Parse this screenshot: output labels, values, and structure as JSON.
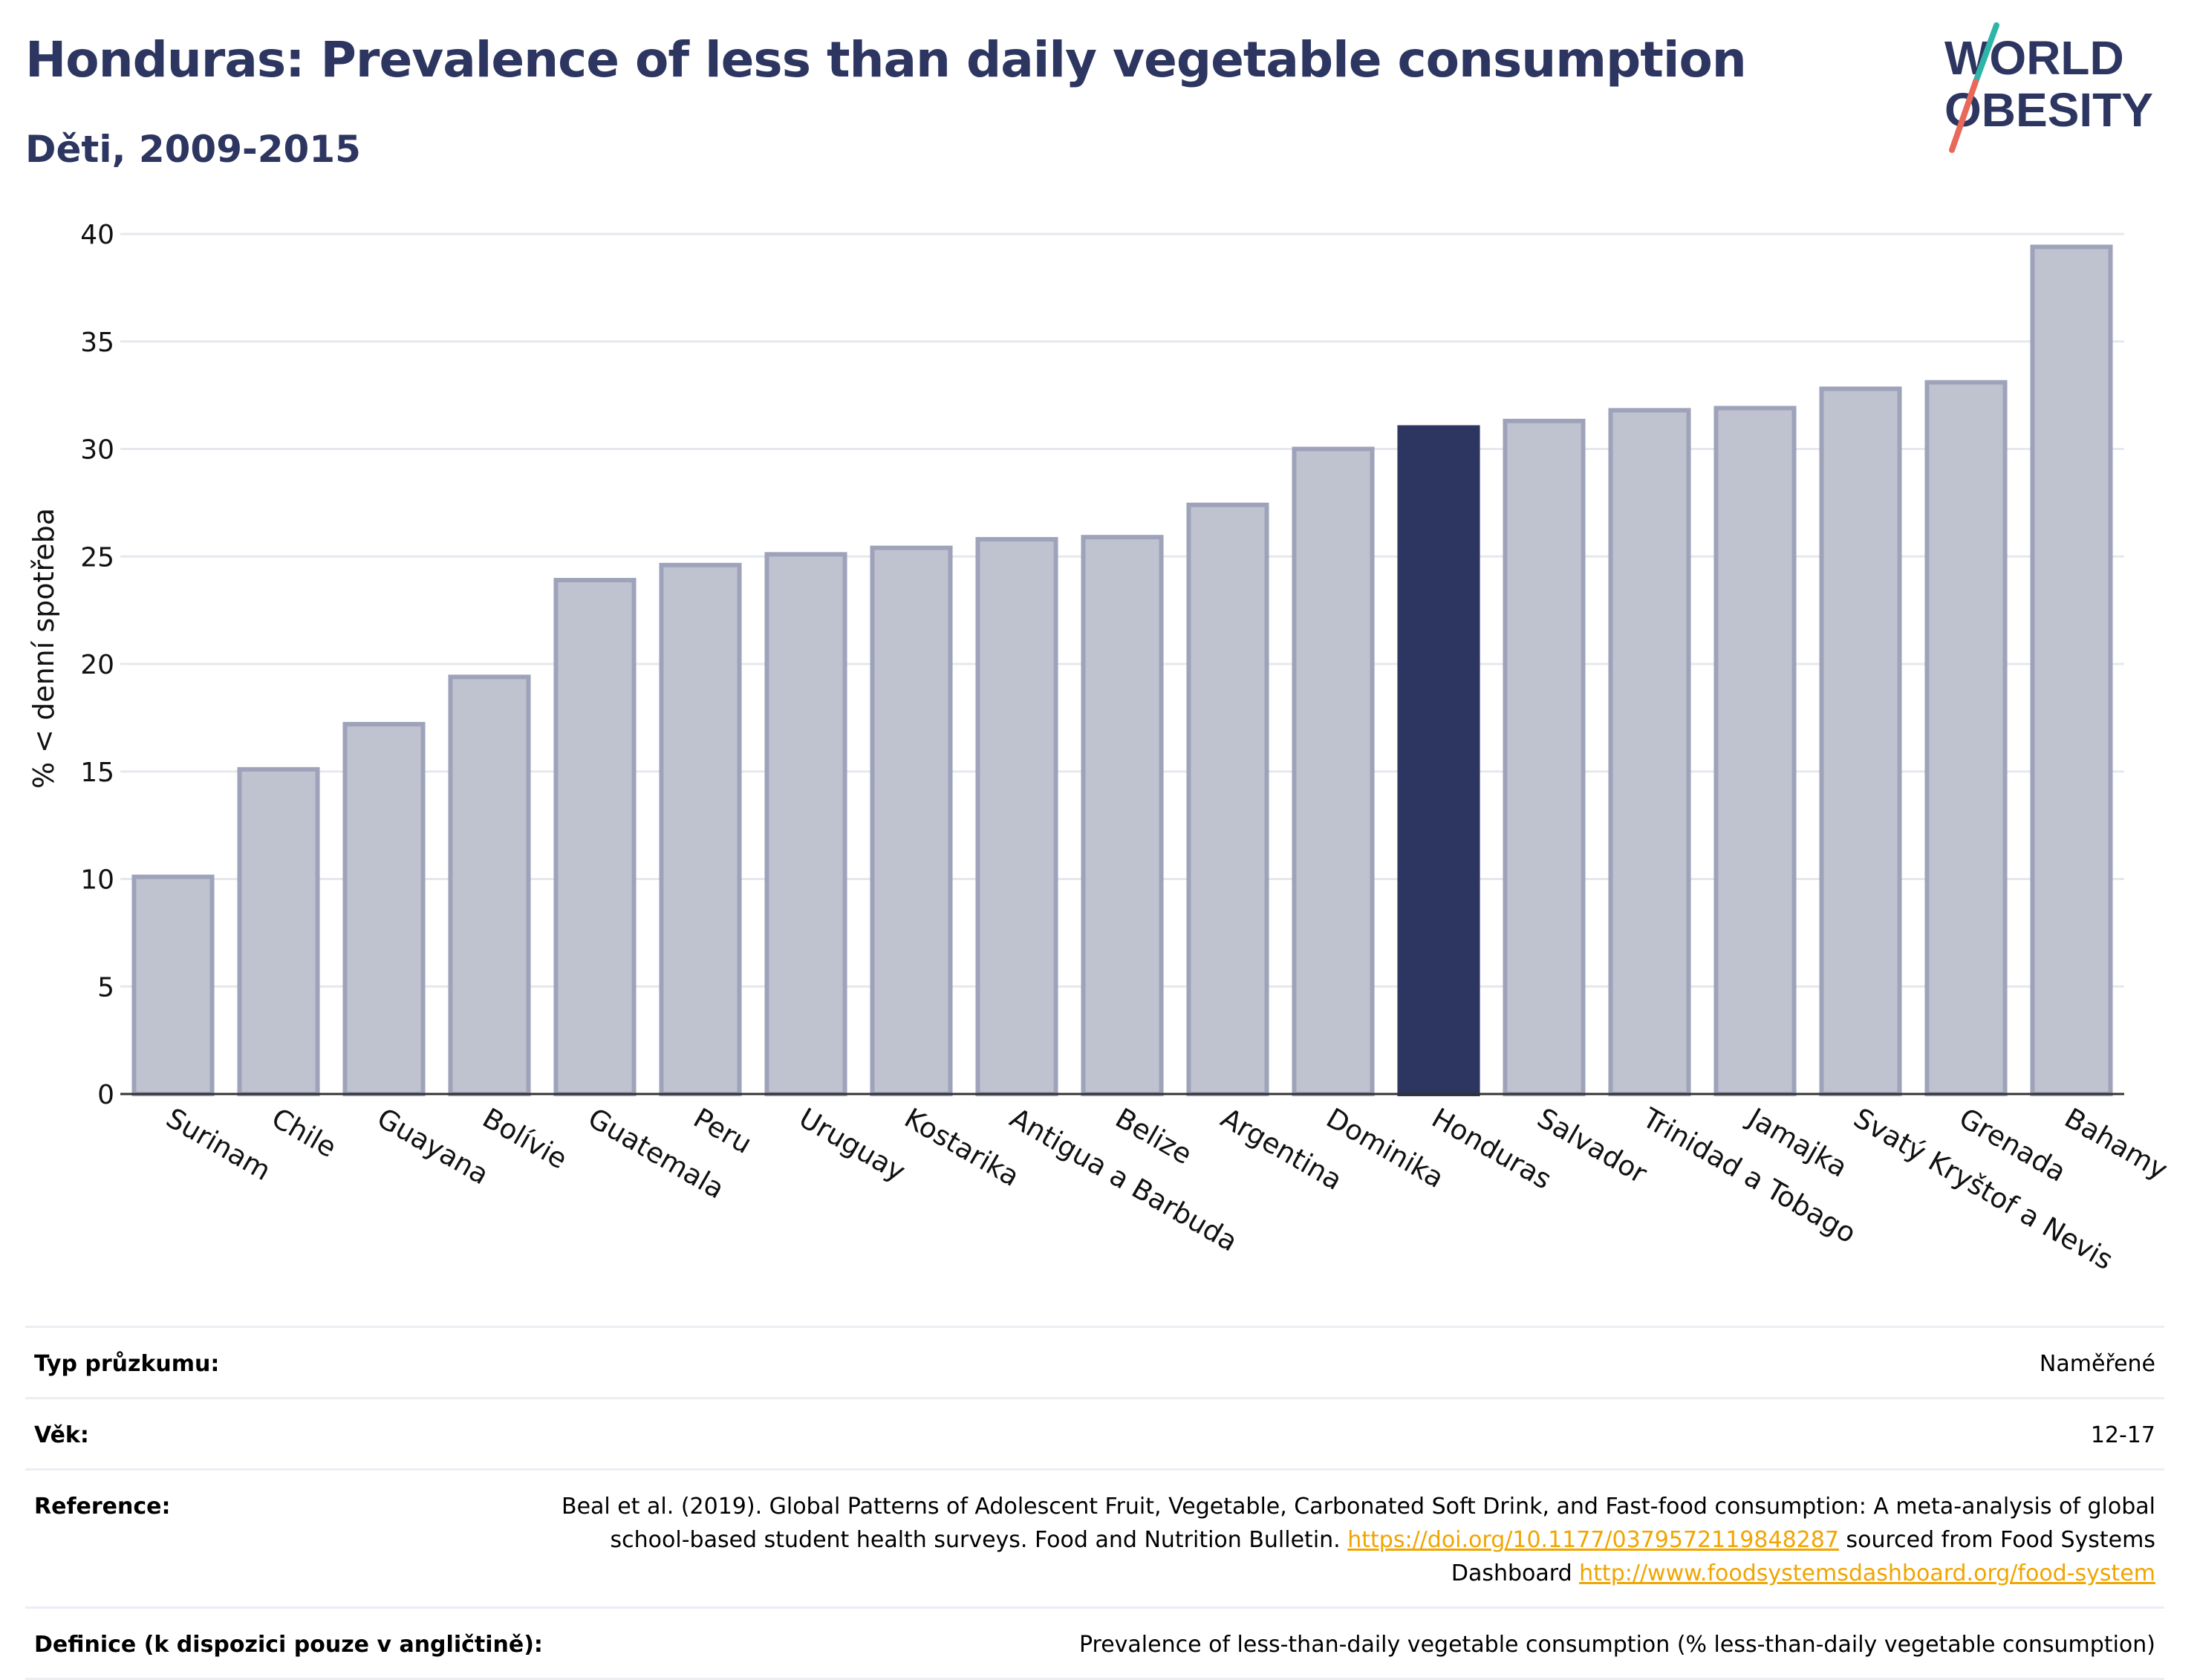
{
  "header": {
    "title": "Honduras: Prevalence of less than daily vegetable consumption",
    "subtitle": "Děti, 2009-2015"
  },
  "logo": {
    "line1": "WORLD",
    "line2": "OBESITY"
  },
  "chart_data": {
    "type": "bar",
    "ylabel": "% < denní spotřeba",
    "ylim": [
      0,
      40
    ],
    "yticks": [
      0,
      5,
      10,
      15,
      20,
      25,
      30,
      35,
      40
    ],
    "categories": [
      "Surinam",
      "Chile",
      "Guayana",
      "Bolívie",
      "Guatemala",
      "Peru",
      "Uruguay",
      "Kostarika",
      "Antigua a Barbuda",
      "Belize",
      "Argentina",
      "Dominika",
      "Honduras",
      "Salvador",
      "Trinidad a Tobago",
      "Jamajka",
      "Svatý Kryštof a Nevis",
      "Grenada",
      "Bahamy"
    ],
    "values": [
      10.1,
      15.1,
      17.2,
      19.4,
      23.9,
      24.6,
      25.1,
      25.4,
      25.8,
      25.9,
      27.4,
      30.0,
      31.0,
      31.3,
      31.8,
      31.9,
      32.8,
      33.1,
      39.4
    ],
    "highlight": "Honduras",
    "colors": {
      "highlight": "#2d3561",
      "bar_fill": "#bfc2cf",
      "bar_stroke": "#9ea3ba",
      "grid": "#e6e8ee"
    },
    "grid": true
  },
  "meta": {
    "survey_label": "Typ průzkumu:",
    "survey_value": "Naměřené",
    "age_label": "Věk:",
    "age_value": "12-17",
    "reference_label": "Reference:",
    "reference_text_1": "Beal et al. (2019). Global Patterns of Adolescent Fruit, Vegetable, Carbonated Soft Drink, and Fast-food consumption: A meta-analysis of global school-based student health surveys. Food and Nutrition Bulletin. ",
    "reference_link_1": "https://doi.org/10.1177/0379572119848287",
    "reference_text_2": " sourced from Food Systems Dashboard ",
    "reference_link_2": "http://www.foodsystemsdashboard.org/food-system",
    "definition_label": "Definice (k dispozici pouze v angličtině):",
    "definition_value": "Prevalence of less-than-daily vegetable consumption (% less-than-daily vegetable consumption)"
  }
}
